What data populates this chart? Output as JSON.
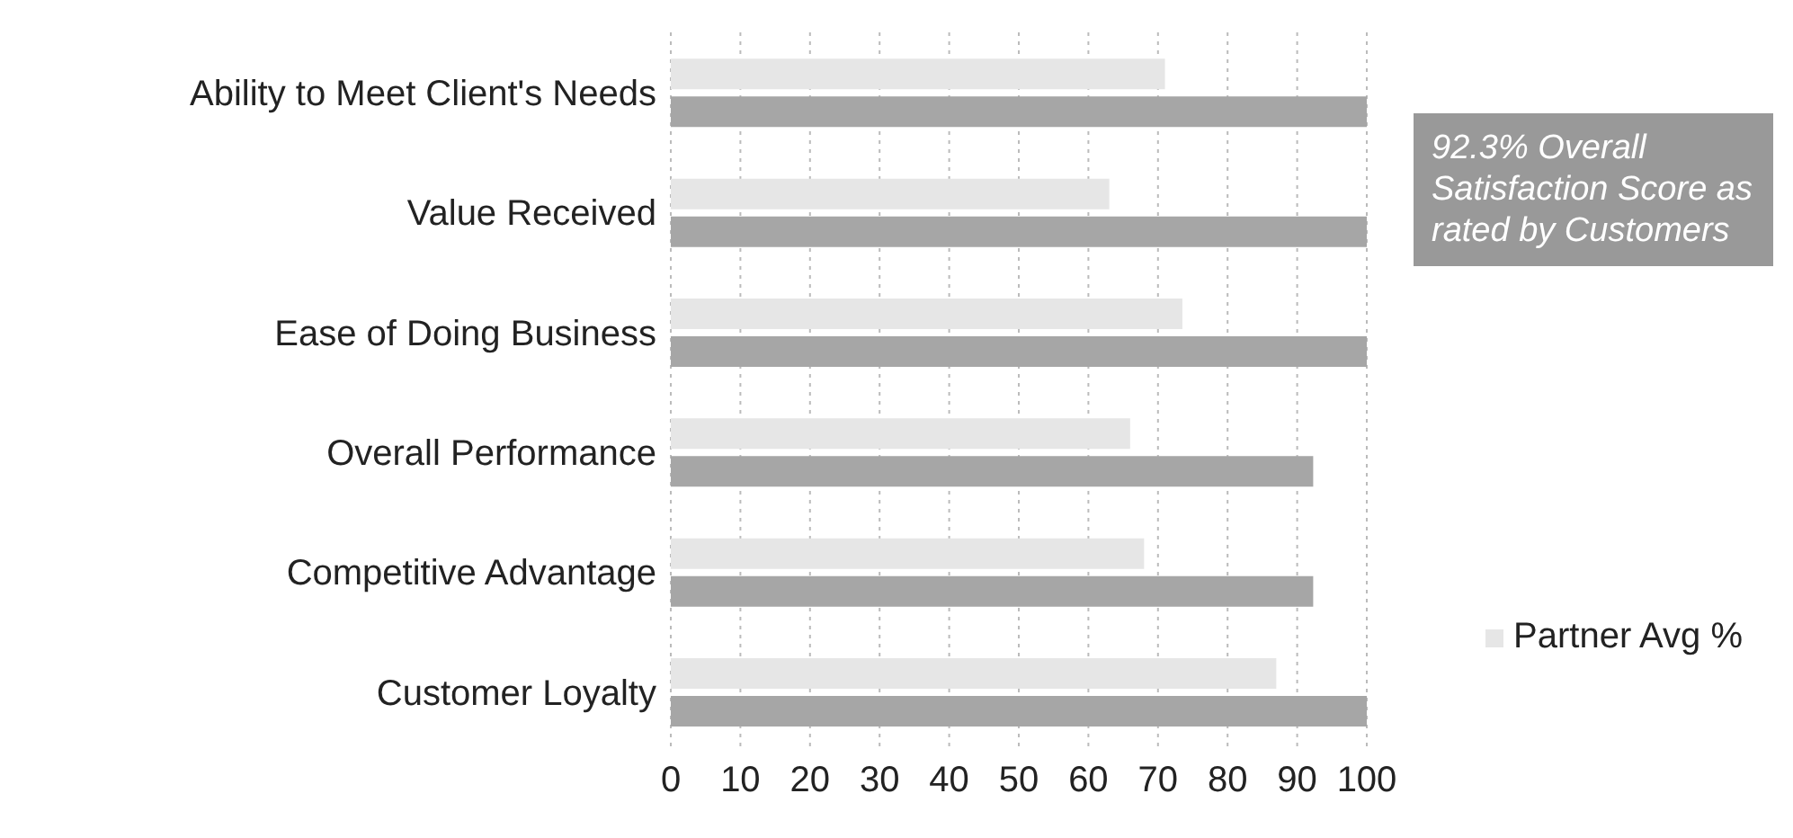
{
  "chart_data": {
    "type": "bar",
    "orientation": "horizontal",
    "categories": [
      "Ability to Meet Client's Needs",
      "Value Received",
      "Ease of Doing Business",
      "Overall Performance",
      "Competitive Advantage",
      "Customer Loyalty"
    ],
    "series": [
      {
        "name": "Partner Avg %",
        "color": "#e6e6e6",
        "values": [
          71,
          63,
          73.5,
          66,
          68,
          87
        ]
      },
      {
        "color": "#a6a6a6",
        "values": [
          100,
          100,
          100,
          92.3,
          92.3,
          100
        ]
      }
    ],
    "xlim": [
      0,
      100
    ],
    "xticks": [
      0,
      10,
      20,
      30,
      40,
      50,
      60,
      70,
      80,
      90,
      100
    ],
    "grid": "x",
    "legend": "right",
    "annotations": [
      "92.3% Overall Satisfaction Score as rated by Customers"
    ]
  }
}
